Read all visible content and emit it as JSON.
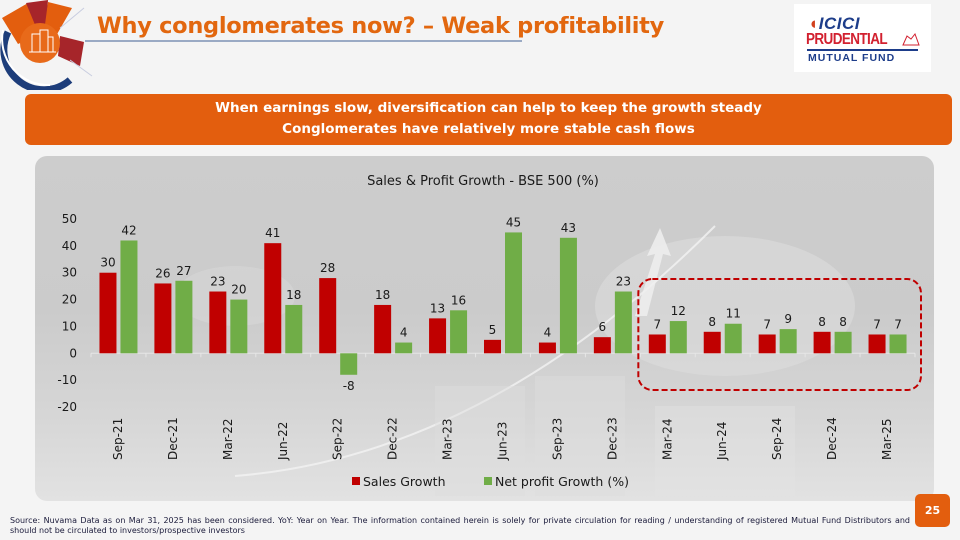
{
  "slide": {
    "title": "Why conglomerates now? – Weak profitability",
    "banner_lines": [
      "When earnings slow, diversification can help to keep the growth steady",
      "Conglomerates have relatively more stable cash flows"
    ],
    "footnote": "Source: Nuvama Data as on Mar 31, 2025 has been considered. YoY: Year on Year. The information contained herein is solely for private circulation for reading / understanding of registered Mutual Fund Distributors and should not be circulated to investors/prospective investors",
    "page_number": "25",
    "brand": {
      "line1": "ICICI",
      "line2": "PRUDENTIAL",
      "line3": "MUTUAL FUND"
    },
    "colors": {
      "accent_orange": "#e35e0e",
      "title_orange": "#e2670f",
      "sales_red": "#c00000",
      "profit_green": "#70ad47",
      "highlight_dash": "#c00000"
    }
  },
  "chart_data": {
    "type": "bar",
    "title": "Sales & Profit Growth - BSE 500 (%)",
    "xlabel": "",
    "ylabel": "",
    "ylim": [
      -20,
      50
    ],
    "yticks": [
      50,
      40,
      30,
      20,
      10,
      0,
      -10,
      -20
    ],
    "grid": false,
    "legend_position": "bottom",
    "categories": [
      "Sep-21",
      "Dec-21",
      "Mar-22",
      "Jun-22",
      "Sep-22",
      "Dec-22",
      "Mar-23",
      "Jun-23",
      "Sep-23",
      "Dec-23",
      "Mar-24",
      "Jun-24",
      "Sep-24",
      "Dec-24",
      "Mar-25"
    ],
    "series": [
      {
        "name": "Sales Growth",
        "color": "#c00000",
        "values": [
          30,
          26,
          23,
          41,
          28,
          18,
          13,
          5,
          4,
          6,
          7,
          8,
          7,
          8,
          7
        ]
      },
      {
        "name": "Net profit Growth (%)",
        "color": "#70ad47",
        "values": [
          42,
          27,
          20,
          18,
          -8,
          4,
          16,
          45,
          43,
          23,
          12,
          11,
          9,
          8,
          7
        ]
      }
    ],
    "annotations": [
      {
        "type": "dashed-highlight-box",
        "from_category": "Mar-24",
        "to_category": "Mar-25"
      }
    ]
  }
}
